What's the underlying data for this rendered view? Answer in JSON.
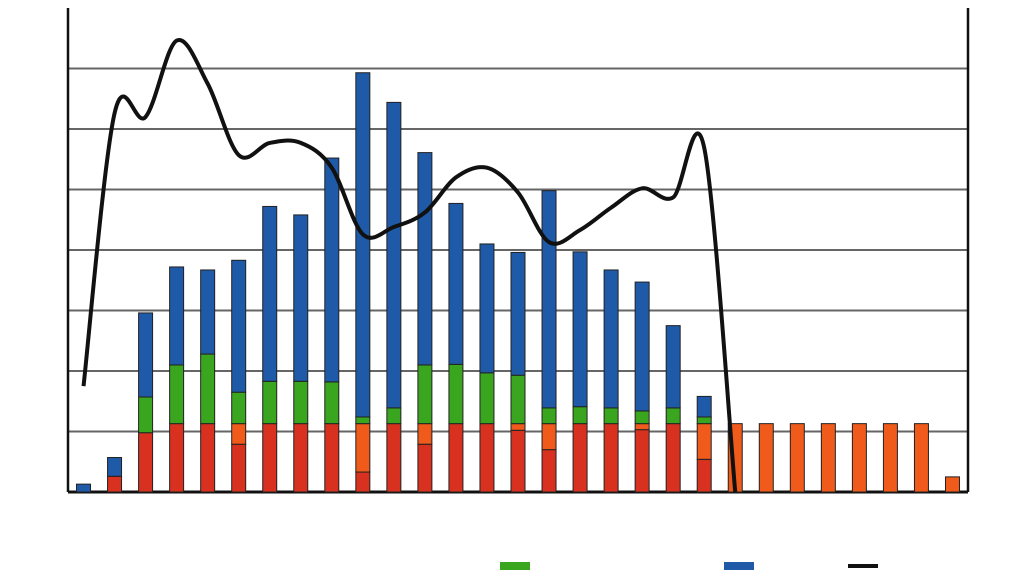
{
  "chart_data": {
    "type": "bar",
    "stacked": true,
    "grid": true,
    "legend": "bottom",
    "categories": [
      null,
      null,
      null,
      null,
      null,
      null,
      null,
      null,
      null,
      null,
      null,
      null,
      null,
      null,
      null,
      null,
      null,
      null,
      null,
      null,
      null,
      null,
      null,
      null,
      null,
      null,
      null,
      null,
      null
    ],
    "ylim": [
      0,
      8
    ],
    "yticks": [
      0,
      1,
      2,
      3,
      4,
      5,
      6,
      7
    ],
    "series": [
      {
        "color": "#d9311f",
        "in_legend": false,
        "values": [
          0,
          0.26,
          0.98,
          1.13,
          1.13,
          0.79,
          1.13,
          1.13,
          1.13,
          0.33,
          1.13,
          0.79,
          1.13,
          1.13,
          1.02,
          0.7,
          1.13,
          1.13,
          1.03,
          1.13,
          0.54,
          0,
          0,
          0,
          0,
          0,
          0,
          0,
          0
        ]
      },
      {
        "color": "#f05a1a",
        "in_legend": false,
        "values": [
          0,
          0,
          0,
          0,
          0,
          0.34,
          0,
          0,
          0,
          0.8,
          0,
          0.34,
          0,
          0,
          0.11,
          0.43,
          0,
          0,
          0.1,
          0,
          0.59,
          1.13,
          1.13,
          1.13,
          1.13,
          1.13,
          1.13,
          1.13,
          0.25
        ]
      },
      {
        "color": "#3aa51e",
        "in_legend": true,
        "values": [
          0,
          0,
          0.59,
          0.97,
          1.15,
          0.52,
          0.7,
          0.7,
          0.69,
          0.11,
          0.26,
          0.97,
          0.98,
          0.84,
          0.8,
          0.26,
          0.28,
          0.26,
          0.21,
          0.26,
          0.11,
          0,
          0,
          0,
          0,
          0,
          0,
          0,
          0
        ]
      },
      {
        "color": "#1f5aa8",
        "in_legend": true,
        "values": [
          0.13,
          0.31,
          1.39,
          1.62,
          1.39,
          2.18,
          2.89,
          2.75,
          3.7,
          5.69,
          5.05,
          3.51,
          2.66,
          2.13,
          2.03,
          3.59,
          2.56,
          2.28,
          2.13,
          1.36,
          0.34,
          0,
          0,
          0,
          0,
          0,
          0,
          0,
          0
        ]
      },
      {
        "type": "line",
        "color": "#111111",
        "in_legend": true,
        "values": [
          1.75,
          6.26,
          6.2,
          7.46,
          6.75,
          5.57,
          5.77,
          5.77,
          5.36,
          4.26,
          4.38,
          4.62,
          5.2,
          5.36,
          4.95,
          4.13,
          4.33,
          4.7,
          5.02,
          4.87,
          5.69,
          0,
          null,
          null,
          null,
          null,
          null,
          null,
          null
        ]
      }
    ]
  }
}
